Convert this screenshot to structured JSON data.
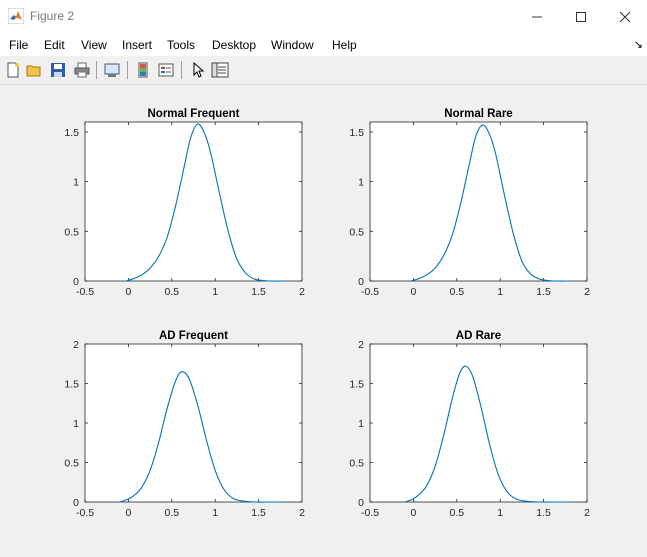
{
  "window": {
    "title": "Figure 2",
    "icon": "matlab-logo-icon"
  },
  "menubar": {
    "items": [
      "File",
      "Edit",
      "View",
      "Insert",
      "Tools",
      "Desktop",
      "Window",
      "Help"
    ],
    "overflow_icon": "dock-arrow-icon"
  },
  "toolbar": {
    "buttons": [
      "new-figure-icon",
      "open-file-icon",
      "save-icon",
      "print-icon",
      "link-plot-icon",
      "insert-colorbar-icon",
      "insert-legend-icon",
      "edit-plot-icon",
      "open-property-inspector-icon"
    ]
  },
  "colors": {
    "line": "#0072bd",
    "axes_bg": "#ffffff",
    "figure_bg": "#f0f0f0"
  },
  "chart_data": [
    {
      "type": "line",
      "title": "Normal Frequent",
      "xlim": [
        -0.5,
        2
      ],
      "ylim": [
        0,
        1.6
      ],
      "xticks": [
        "-0.5",
        "0",
        "0.5",
        "1",
        "1.5",
        "2"
      ],
      "yticks": [
        "0",
        "0.5",
        "1",
        "1.5"
      ],
      "x": [
        -0.03,
        0.05,
        0.15,
        0.25,
        0.35,
        0.45,
        0.55,
        0.65,
        0.72,
        0.8,
        0.88,
        0.95,
        1.05,
        1.15,
        1.25,
        1.35,
        1.45,
        1.55,
        1.65,
        1.8
      ],
      "y": [
        0.0,
        0.02,
        0.06,
        0.13,
        0.25,
        0.45,
        0.78,
        1.18,
        1.45,
        1.58,
        1.48,
        1.28,
        0.88,
        0.5,
        0.22,
        0.08,
        0.02,
        0.005,
        0.0,
        0.0
      ]
    },
    {
      "type": "line",
      "title": "Normal Rare",
      "xlim": [
        -0.5,
        2
      ],
      "ylim": [
        0,
        1.6
      ],
      "xticks": [
        "-0.5",
        "0",
        "0.5",
        "1",
        "1.5",
        "2"
      ],
      "yticks": [
        "0",
        "0.5",
        "1",
        "1.5"
      ],
      "x": [
        -0.03,
        0.05,
        0.15,
        0.25,
        0.35,
        0.45,
        0.55,
        0.65,
        0.72,
        0.8,
        0.88,
        0.95,
        1.05,
        1.15,
        1.25,
        1.35,
        1.45,
        1.55,
        1.65,
        1.8
      ],
      "y": [
        0.0,
        0.02,
        0.06,
        0.13,
        0.26,
        0.47,
        0.8,
        1.2,
        1.46,
        1.57,
        1.47,
        1.27,
        0.86,
        0.48,
        0.2,
        0.07,
        0.02,
        0.005,
        0.0,
        0.0
      ]
    },
    {
      "type": "line",
      "title": "AD Frequent",
      "xlim": [
        -0.5,
        2
      ],
      "ylim": [
        0,
        2
      ],
      "xticks": [
        "-0.5",
        "0",
        "0.5",
        "1",
        "1.5",
        "2"
      ],
      "yticks": [
        "0",
        "0.5",
        "1",
        "1.5",
        "2"
      ],
      "x": [
        -0.1,
        -0.02,
        0.05,
        0.15,
        0.25,
        0.35,
        0.45,
        0.55,
        0.62,
        0.7,
        0.8,
        0.9,
        1.0,
        1.1,
        1.2,
        1.3,
        1.45,
        1.6,
        1.8
      ],
      "y": [
        0.0,
        0.03,
        0.07,
        0.18,
        0.4,
        0.76,
        1.2,
        1.55,
        1.65,
        1.56,
        1.22,
        0.78,
        0.4,
        0.16,
        0.05,
        0.015,
        0.0,
        0.0,
        0.0
      ]
    },
    {
      "type": "line",
      "title": "AD Rare",
      "xlim": [
        -0.5,
        2
      ],
      "ylim": [
        0,
        2
      ],
      "xticks": [
        "-0.5",
        "0",
        "0.5",
        "1",
        "1.5",
        "2"
      ],
      "yticks": [
        "0",
        "0.5",
        "1",
        "1.5",
        "2"
      ],
      "x": [
        -0.1,
        -0.02,
        0.05,
        0.15,
        0.25,
        0.35,
        0.45,
        0.53,
        0.6,
        0.68,
        0.78,
        0.88,
        0.98,
        1.08,
        1.18,
        1.3,
        1.45,
        1.6,
        1.8
      ],
      "y": [
        0.0,
        0.03,
        0.08,
        0.2,
        0.45,
        0.85,
        1.32,
        1.62,
        1.72,
        1.6,
        1.2,
        0.72,
        0.34,
        0.13,
        0.04,
        0.01,
        0.0,
        0.0,
        0.0
      ]
    }
  ]
}
